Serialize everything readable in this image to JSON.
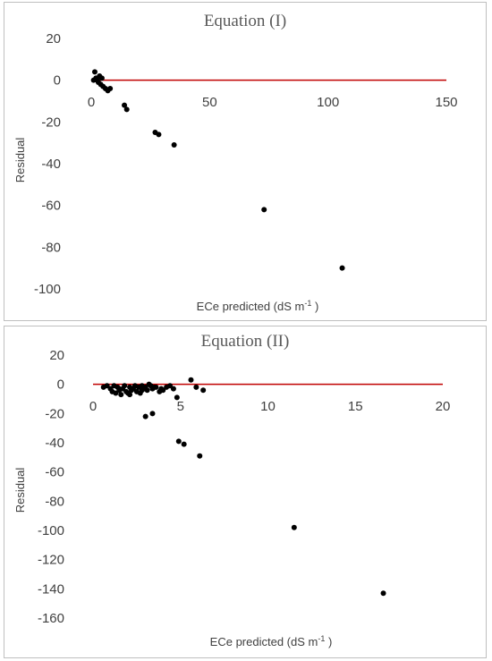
{
  "chart_data": [
    {
      "type": "scatter",
      "title": "Equation (I)",
      "xlabel": "ECe predicted (dS m",
      "xlabel_sup": "-1",
      "xlabel_tail": " )",
      "ylabel": "Residual",
      "xlim": [
        0,
        150
      ],
      "ylim": [
        -100,
        20
      ],
      "xticks": [
        "0",
        "50",
        "100",
        "150"
      ],
      "yticks": [
        "20",
        "0",
        "-20",
        "-40",
        "-60",
        "-80",
        "-100"
      ],
      "baseline_color": "#c00000",
      "marker_color": "#000000",
      "points": [
        {
          "x": 1,
          "y": 0
        },
        {
          "x": 1.5,
          "y": 4
        },
        {
          "x": 2,
          "y": 1
        },
        {
          "x": 2.5,
          "y": 0
        },
        {
          "x": 3,
          "y": -1
        },
        {
          "x": 3.5,
          "y": 2
        },
        {
          "x": 4,
          "y": -2
        },
        {
          "x": 4.5,
          "y": 1
        },
        {
          "x": 5,
          "y": -3
        },
        {
          "x": 6,
          "y": -4
        },
        {
          "x": 7,
          "y": -5
        },
        {
          "x": 8,
          "y": -4
        },
        {
          "x": 14,
          "y": -12
        },
        {
          "x": 15,
          "y": -14
        },
        {
          "x": 27,
          "y": -25
        },
        {
          "x": 28.5,
          "y": -26
        },
        {
          "x": 35,
          "y": -31
        },
        {
          "x": 73,
          "y": -62
        },
        {
          "x": 106,
          "y": -90
        }
      ]
    },
    {
      "type": "scatter",
      "title": "Equation (II)",
      "xlabel": "ECe predicted (dS m",
      "xlabel_sup": "-1",
      "xlabel_tail": " )",
      "ylabel": "Residual",
      "xlim": [
        0,
        20
      ],
      "ylim": [
        -160,
        20
      ],
      "xticks": [
        "0",
        "5",
        "10",
        "15",
        "20"
      ],
      "yticks": [
        "20",
        "0",
        "-20",
        "-40",
        "-60",
        "-80",
        "-100",
        "-120",
        "-140",
        "-160"
      ],
      "baseline_color": "#c00000",
      "marker_color": "#000000",
      "points": [
        {
          "x": 0.6,
          "y": -2
        },
        {
          "x": 0.8,
          "y": -1
        },
        {
          "x": 1.0,
          "y": -3
        },
        {
          "x": 1.1,
          "y": -5
        },
        {
          "x": 1.2,
          "y": -1
        },
        {
          "x": 1.3,
          "y": -6
        },
        {
          "x": 1.4,
          "y": -2
        },
        {
          "x": 1.5,
          "y": -4
        },
        {
          "x": 1.6,
          "y": -7
        },
        {
          "x": 1.7,
          "y": -3
        },
        {
          "x": 1.8,
          "y": -1
        },
        {
          "x": 1.9,
          "y": -5
        },
        {
          "x": 2.0,
          "y": -6
        },
        {
          "x": 2.1,
          "y": -2
        },
        {
          "x": 2.2,
          "y": -4
        },
        {
          "x": 2.3,
          "y": -3
        },
        {
          "x": 2.4,
          "y": -1
        },
        {
          "x": 2.5,
          "y": -5
        },
        {
          "x": 2.6,
          "y": -2
        },
        {
          "x": 2.7,
          "y": -6
        },
        {
          "x": 2.8,
          "y": -1
        },
        {
          "x": 2.9,
          "y": -3
        },
        {
          "x": 3.0,
          "y": -2
        },
        {
          "x": 3.1,
          "y": -4
        },
        {
          "x": 3.2,
          "y": 0
        },
        {
          "x": 3.3,
          "y": -1
        },
        {
          "x": 3.4,
          "y": -3
        },
        {
          "x": 3.5,
          "y": -2
        },
        {
          "x": 1.5,
          "y": -3
        },
        {
          "x": 2.1,
          "y": -7
        },
        {
          "x": 2.8,
          "y": -4
        },
        {
          "x": 3.6,
          "y": -2
        },
        {
          "x": 3.8,
          "y": -5
        },
        {
          "x": 3.9,
          "y": -3
        },
        {
          "x": 4.0,
          "y": -4
        },
        {
          "x": 4.2,
          "y": -2
        },
        {
          "x": 4.4,
          "y": -1
        },
        {
          "x": 4.6,
          "y": -3
        },
        {
          "x": 3.0,
          "y": -22
        },
        {
          "x": 3.4,
          "y": -20
        },
        {
          "x": 4.8,
          "y": -9
        },
        {
          "x": 4.9,
          "y": -39
        },
        {
          "x": 5.2,
          "y": -41
        },
        {
          "x": 5.6,
          "y": 3
        },
        {
          "x": 5.9,
          "y": -2
        },
        {
          "x": 6.1,
          "y": -49
        },
        {
          "x": 6.3,
          "y": -4
        },
        {
          "x": 11.5,
          "y": -98
        },
        {
          "x": 16.6,
          "y": -143
        }
      ]
    }
  ]
}
